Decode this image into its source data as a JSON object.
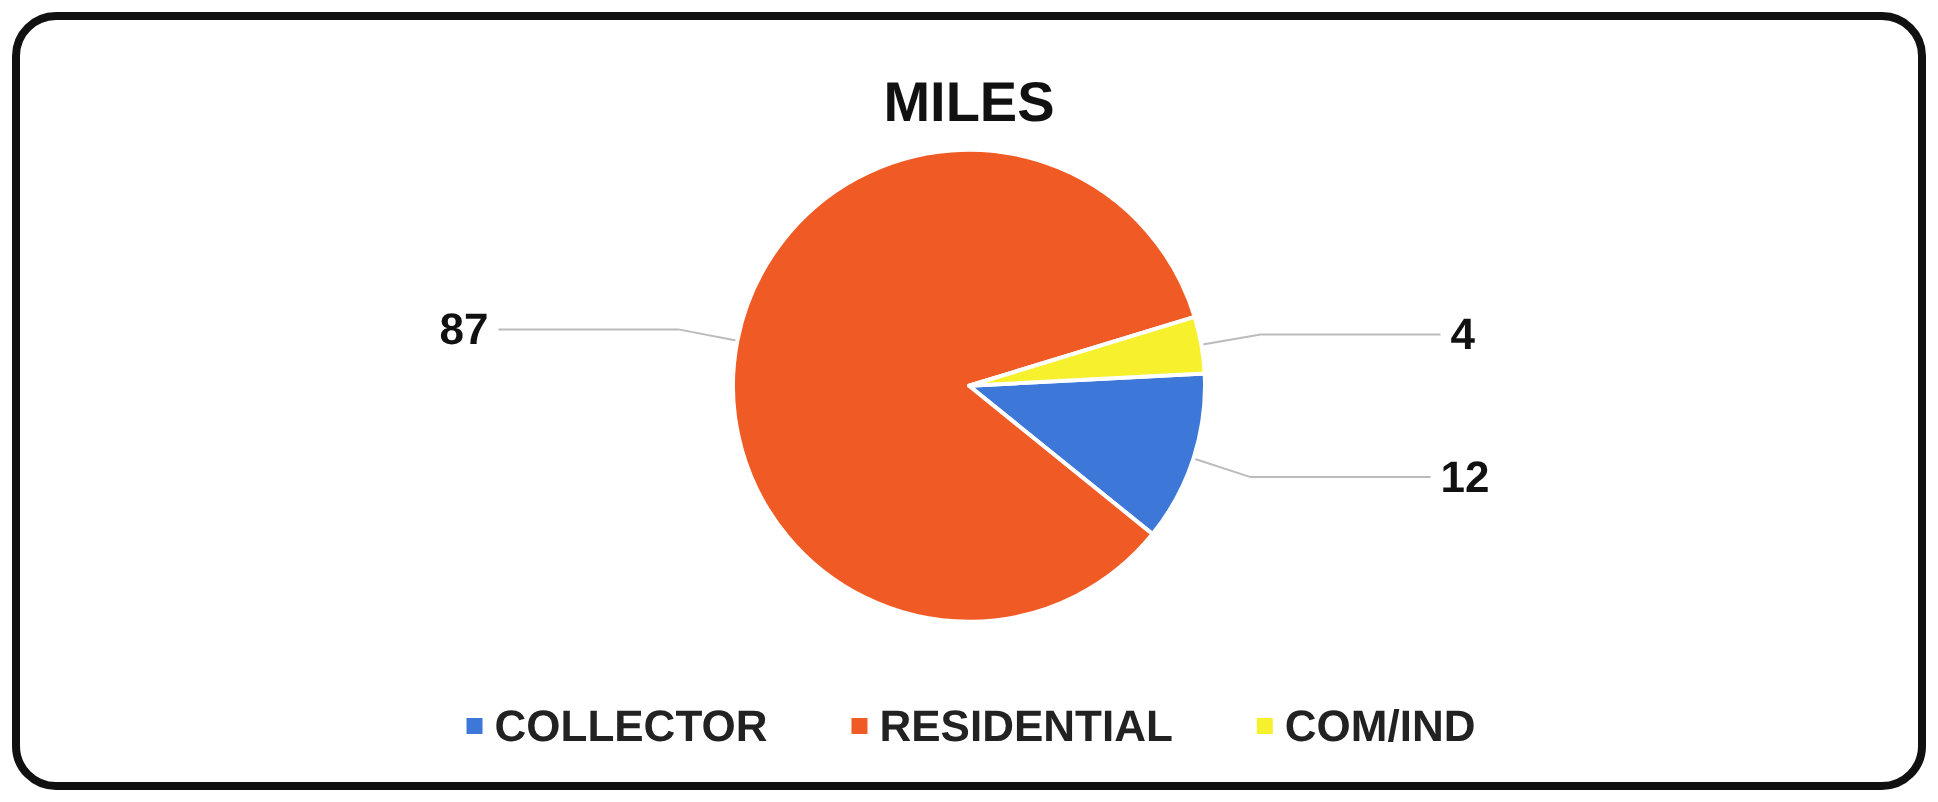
{
  "chart_data": {
    "type": "pie",
    "title": "MILES",
    "categories": [
      "COLLECTOR",
      "RESIDENTIAL",
      "COM/IND"
    ],
    "values": [
      12,
      87,
      4
    ],
    "colors": [
      "#3d78d8",
      "#f05a24",
      "#f7f02c"
    ],
    "data_labels": true,
    "legend": "bottom"
  }
}
